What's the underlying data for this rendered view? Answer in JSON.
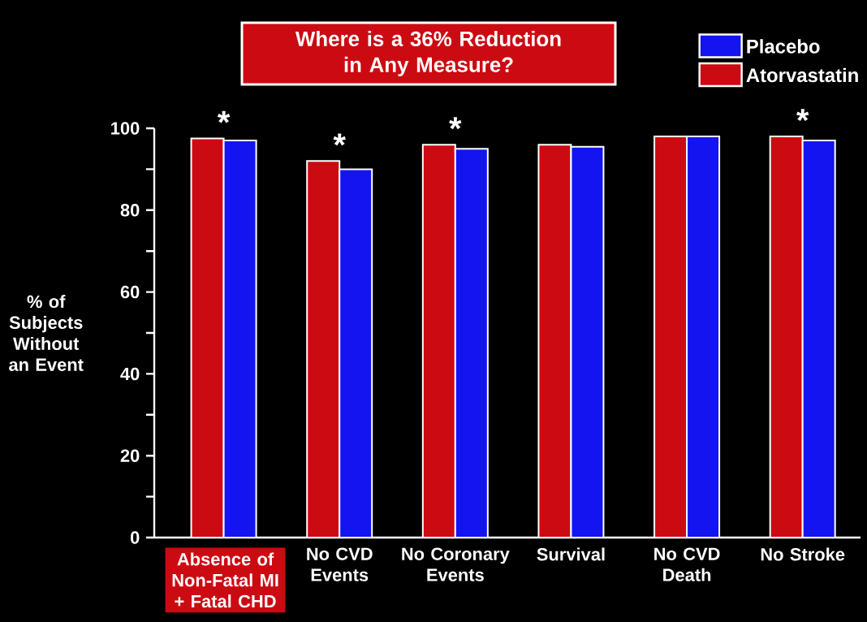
{
  "chart_data": {
    "type": "bar",
    "title": "Where is a 36% Reduction in Any Measure?",
    "ylabel": "% of Subjects Without an Event",
    "categories": [
      "Absence of Non-Fatal MI + Fatal CHD",
      "No CVD Events",
      "No Coronary Events",
      "Survival",
      "No CVD Death",
      "No Stroke"
    ],
    "series": [
      {
        "name": "Atorvastatin",
        "color": "#cc0a12",
        "values": [
          97.5,
          92,
          96,
          96,
          98,
          98
        ]
      },
      {
        "name": "Placebo",
        "color": "#1414f0",
        "values": [
          97,
          90,
          95,
          95.5,
          98,
          97
        ]
      }
    ],
    "ylim": [
      0,
      100
    ],
    "yticks": [
      0,
      20,
      40,
      60,
      80,
      100
    ],
    "grid": false,
    "legend": "top right",
    "annotations": [
      {
        "text": "*",
        "x": "Absence of Non-Fatal MI + Fatal CHD",
        "y": 97.5
      },
      {
        "text": "*",
        "x": "No CVD Events",
        "y": 92
      },
      {
        "text": "*",
        "x": "No Coronary Events",
        "y": 96
      },
      {
        "text": "*",
        "x": "No Stroke",
        "y": 98
      }
    ]
  }
}
